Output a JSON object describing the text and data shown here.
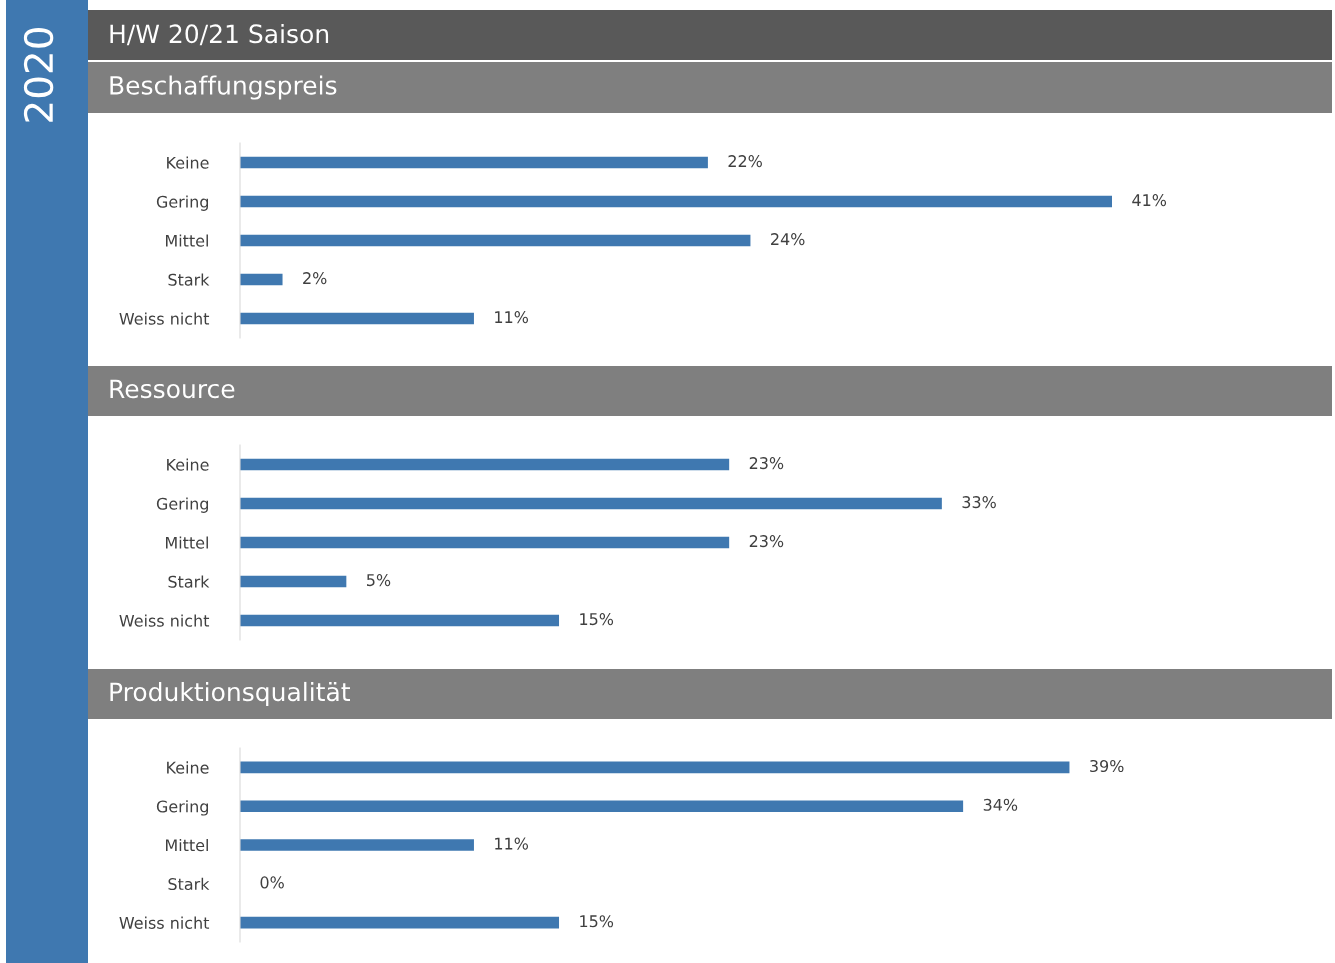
{
  "chart_data": [
    {
      "type": "bar",
      "orientation": "horizontal",
      "title": "H/W 20/21 Saison",
      "subtitle": "Beschaffungspreis",
      "annotations": [
        "2020"
      ],
      "categories": [
        "Keine",
        "Gering",
        "Mittel",
        "Stark",
        "Weiss nicht"
      ],
      "values": [
        22,
        41,
        24,
        2,
        11
      ],
      "value_labels": [
        "22%",
        "41%",
        "24%",
        "2%",
        "11%"
      ],
      "color": "#3f78b0"
    },
    {
      "type": "bar",
      "orientation": "horizontal",
      "title": "Ressource",
      "categories": [
        "Keine",
        "Gering",
        "Mittel",
        "Stark",
        "Weiss nicht"
      ],
      "values": [
        23,
        33,
        23,
        5,
        15
      ],
      "value_labels": [
        "23%",
        "33%",
        "23%",
        "5%",
        "15%"
      ],
      "color": "#3f78b0"
    },
    {
      "type": "bar",
      "orientation": "horizontal",
      "title": "Produktionsqualität",
      "categories": [
        "Keine",
        "Gering",
        "Mittel",
        "Stark",
        "Weiss nicht"
      ],
      "values": [
        39,
        34,
        11,
        0,
        15
      ],
      "value_labels": [
        "39%",
        "34%",
        "11%",
        "0%",
        "15%"
      ],
      "color": "#3f78b0"
    }
  ]
}
